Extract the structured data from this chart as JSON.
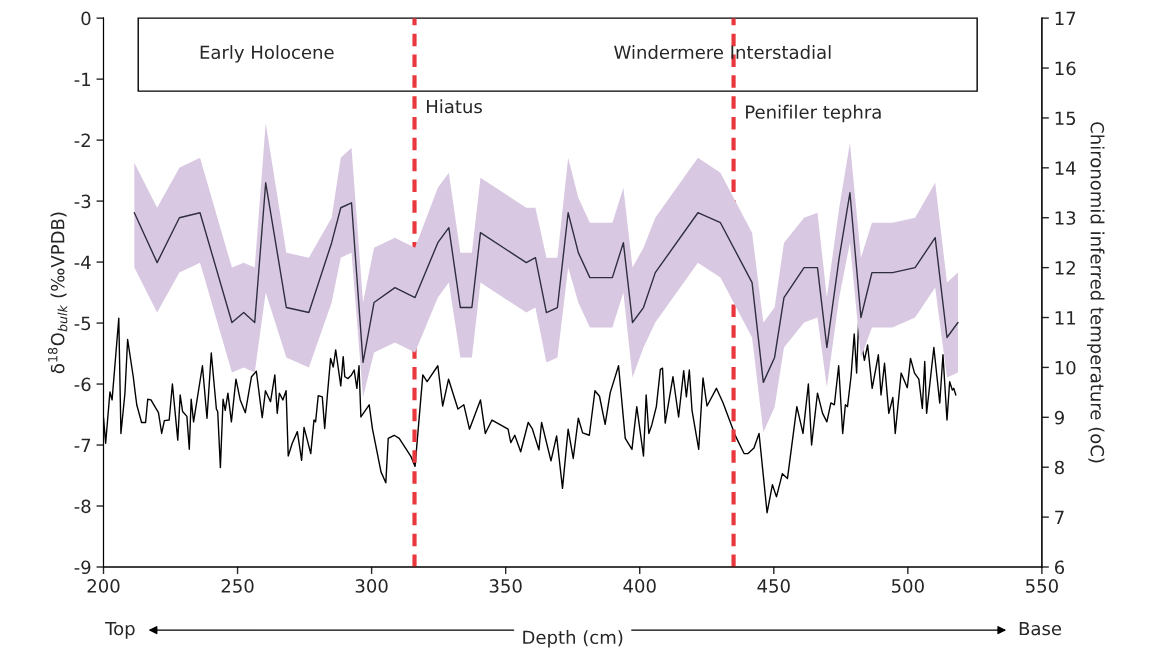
{
  "chart_data": {
    "type": "line",
    "xlabel": "Depth (cm)",
    "ylabel": "δ$^{18}$O$_{bulk}$ (‰VPDB)",
    "y2label": "Chironomid inferred temperature (oC)",
    "xlim": [
      200,
      550
    ],
    "xticks": [
      200,
      250,
      300,
      350,
      400,
      450,
      500,
      550
    ],
    "ylim": [
      -9,
      0
    ],
    "yticks": [
      -9,
      -8,
      -7,
      -6,
      -5,
      -4,
      -3,
      -2,
      -1,
      0
    ],
    "y2lim": [
      6,
      17
    ],
    "y2ticks": [
      6,
      7,
      8,
      9,
      10,
      11,
      12,
      13,
      14,
      15,
      16,
      17
    ],
    "grid": false,
    "legend": false,
    "marker": "none",
    "line_style": "solid",
    "annotations": [
      "Early Holocene",
      "Windermere Interstadial",
      "Top",
      "Base"
    ],
    "ref_lines": [
      {
        "axis": "x",
        "value": 316,
        "label": "Hiatus",
        "color": "#e8383d",
        "line_style": "dashed"
      },
      {
        "axis": "x",
        "value": 435,
        "label": "Penifiler tephra",
        "color": "#e8383d",
        "line_style": "dashed"
      }
    ],
    "series": [
      {
        "color": "#000000",
        "x": [
          200.0,
          200.8,
          202.4,
          203.2,
          205.7,
          206.5,
          208.0,
          209.0,
          211.1,
          211.7,
          212.4,
          214.2,
          215.7,
          216.5,
          217.7,
          220.5,
          221.7,
          222.7,
          224.5,
          225.7,
          227.7,
          228.6,
          229.5,
          231.1,
          232.0,
          232.7,
          233.6,
          236.9,
          238.6,
          240.2,
          242.1,
          242.6,
          243.6,
          244.6,
          245.4,
          246.4,
          247.7,
          249.4,
          251.0,
          252.9,
          255.2,
          257.0,
          259.2,
          260.4,
          262.3,
          263.9,
          264.8,
          265.6,
          266.9,
          268.1,
          268.9,
          270.4,
          272.3,
          273.9,
          274.8,
          277.3,
          278.5,
          279.1,
          280.1,
          281.6,
          282.5,
          283.5,
          284.7,
          285.7,
          286.6,
          287.5,
          288.5,
          289.4,
          290.0,
          291.2,
          292.5,
          293.5,
          294.5,
          295.3,
          296.0,
          299.1,
          300.3,
          303.5,
          305.3,
          306.2,
          308.4,
          310.3,
          314.7,
          316.2,
          319.1,
          320.7,
          324.7,
          326.5,
          328.7,
          332.2,
          334.4,
          336.5,
          340.6,
          342.4,
          344.9,
          350.9,
          351.9,
          353.4,
          355.6,
          358.4,
          359.9,
          362.4,
          363.4,
          366.9,
          369.0,
          371.2,
          373.3,
          375.2,
          377.1,
          378.7,
          381.2,
          383.3,
          385.0,
          387.1,
          389.0,
          392.1,
          394.6,
          397.1,
          398.9,
          401.4,
          402.4,
          403.4,
          404.5,
          406.2,
          407.7,
          408.5,
          409.5,
          412.4,
          414.5,
          416.4,
          417.4,
          418.5,
          419.5,
          422.0,
          423.6,
          425.1,
          428.6,
          431.1,
          435.7,
          438.9,
          440.4,
          442.6,
          444.5,
          447.5,
          449.5,
          451.0,
          453.2,
          455.1,
          458.6,
          460.9,
          462.9,
          464.1,
          466.3,
          468.2,
          469.8,
          471.3,
          472.6,
          474.2,
          475.7,
          476.7,
          477.5,
          478.8,
          480.0,
          480.9,
          481.7,
          482.5,
          483.8,
          485.0,
          486.7,
          489.0,
          490.0,
          491.3,
          492.9,
          494.4,
          495.3,
          497.5,
          499.8,
          501.0,
          502.5,
          504.1,
          505.4,
          506.3,
          507.0,
          509.7,
          511.9,
          513.1,
          514.6,
          515.6,
          516.6,
          517.1,
          517.9
        ],
        "values": [
          -6.55,
          -6.97,
          -6.13,
          -6.26,
          -4.92,
          -6.81,
          -6.15,
          -5.27,
          -5.88,
          -6.1,
          -6.34,
          -6.63,
          -6.63,
          -6.25,
          -6.26,
          -6.47,
          -6.81,
          -6.6,
          -6.59,
          -6.0,
          -6.92,
          -6.18,
          -6.45,
          -6.53,
          -7.07,
          -6.25,
          -6.62,
          -5.7,
          -6.56,
          -5.49,
          -6.41,
          -6.45,
          -7.37,
          -6.25,
          -6.43,
          -6.15,
          -6.62,
          -5.92,
          -6.26,
          -6.47,
          -5.88,
          -5.79,
          -6.55,
          -6.11,
          -6.29,
          -5.85,
          -6.48,
          -6.15,
          -6.26,
          -6.11,
          -7.18,
          -6.97,
          -6.78,
          -7.25,
          -6.71,
          -7.14,
          -6.59,
          -6.62,
          -6.19,
          -6.21,
          -6.73,
          -6.18,
          -5.58,
          -5.72,
          -5.44,
          -5.72,
          -6.03,
          -5.55,
          -5.88,
          -5.91,
          -5.85,
          -5.77,
          -6.07,
          -5.7,
          -6.54,
          -6.34,
          -6.73,
          -7.44,
          -7.62,
          -6.89,
          -6.84,
          -6.89,
          -7.19,
          -7.35,
          -5.85,
          -5.96,
          -5.7,
          -6.36,
          -5.92,
          -6.41,
          -6.34,
          -6.74,
          -6.26,
          -6.81,
          -6.59,
          -6.74,
          -6.96,
          -6.84,
          -7.11,
          -6.63,
          -6.73,
          -7.08,
          -6.63,
          -7.26,
          -6.85,
          -7.71,
          -6.74,
          -7.22,
          -6.56,
          -6.8,
          -6.84,
          -6.11,
          -6.2,
          -6.66,
          -6.14,
          -5.7,
          -6.89,
          -7.07,
          -6.37,
          -7.18,
          -6.18,
          -6.81,
          -6.67,
          -6.37,
          -5.76,
          -5.74,
          -6.64,
          -5.88,
          -6.54,
          -5.78,
          -6.21,
          -5.77,
          -6.43,
          -7.07,
          -5.9,
          -6.36,
          -6.07,
          -6.31,
          -6.85,
          -7.14,
          -7.14,
          -7.05,
          -6.81,
          -8.11,
          -7.65,
          -7.85,
          -7.47,
          -7.55,
          -6.37,
          -6.81,
          -6.0,
          -7.0,
          -6.15,
          -6.48,
          -6.62,
          -6.31,
          -6.34,
          -5.7,
          -6.81,
          -6.34,
          -6.37,
          -5.88,
          -5.18,
          -5.82,
          -4.92,
          -5.28,
          -5.61,
          -5.36,
          -6.07,
          -5.52,
          -6.18,
          -5.66,
          -6.48,
          -6.22,
          -6.81,
          -5.82,
          -6.06,
          -5.58,
          -5.82,
          -5.92,
          -6.4,
          -5.63,
          -6.48,
          -5.4,
          -6.31,
          -5.52,
          -6.59,
          -5.96,
          -6.1,
          -6.07,
          -6.18
        ]
      },
      {
        "axis": "y2",
        "color": "#2e2e3e",
        "x": [
          211.5,
          220,
          228.3,
          236,
          247.9,
          252.3,
          256.4,
          260.5,
          268.2,
          276.6,
          285.1,
          288.5,
          292.5,
          296.8,
          300.9,
          308.7,
          316.2,
          324.7,
          328.8,
          333.1,
          337.4,
          340.6,
          357.7,
          361.1,
          365.2,
          369.3,
          373.3,
          377.1,
          381.4,
          389.8,
          393.9,
          397.3,
          401.4,
          405.8,
          421.7,
          430.1,
          441.9,
          446.1,
          450.3,
          453.8,
          461.3,
          466.3,
          469.8,
          474.4,
          478.4,
          482.5,
          486.6,
          494.3,
          502.7,
          510.2,
          514.6,
          518.7
        ],
        "values": [
          13.1,
          12.1,
          13.0,
          13.1,
          10.9,
          11.1,
          10.9,
          13.7,
          11.2,
          11.1,
          12.5,
          13.2,
          13.3,
          10.1,
          11.3,
          11.6,
          11.4,
          12.5,
          12.8,
          11.2,
          11.2,
          12.7,
          12.1,
          12.2,
          11.1,
          11.2,
          13.1,
          12.3,
          11.8,
          11.8,
          12.5,
          10.9,
          11.2,
          11.9,
          13.1,
          12.9,
          11.7,
          9.7,
          10.2,
          11.4,
          12.0,
          12.0,
          10.4,
          12.2,
          13.5,
          11.0,
          11.9,
          11.9,
          12.0,
          12.6,
          10.6,
          10.9
        ],
        "lower": [
          12.0,
          11.1,
          11.9,
          12.1,
          9.9,
          10.0,
          9.9,
          11.5,
          10.2,
          10.0,
          11.3,
          12.2,
          12.3,
          9.4,
          10.3,
          10.5,
          10.3,
          11.4,
          11.7,
          10.2,
          10.2,
          11.7,
          11.1,
          11.2,
          10.1,
          10.2,
          12.0,
          11.3,
          10.8,
          10.8,
          11.5,
          9.8,
          10.4,
          10.9,
          12.1,
          11.8,
          10.6,
          8.7,
          9.2,
          10.4,
          10.9,
          11.0,
          9.6,
          11.4,
          12.5,
          10.2,
          10.8,
          10.8,
          11.0,
          11.6,
          9.8,
          9.9
        ],
        "upper": [
          14.1,
          13.2,
          14.0,
          14.2,
          12.0,
          12.1,
          12.0,
          14.9,
          12.3,
          12.2,
          13.0,
          14.2,
          14.4,
          11.3,
          12.4,
          12.6,
          12.4,
          13.6,
          13.9,
          12.3,
          12.3,
          13.8,
          13.2,
          13.2,
          12.2,
          12.2,
          14.2,
          13.4,
          12.9,
          12.9,
          13.6,
          12.0,
          12.4,
          13.0,
          14.2,
          13.9,
          12.7,
          10.9,
          11.2,
          12.5,
          13.0,
          13.1,
          11.4,
          13.2,
          14.5,
          12.2,
          12.9,
          12.9,
          13.0,
          13.7,
          11.7,
          11.9
        ]
      }
    ]
  }
}
